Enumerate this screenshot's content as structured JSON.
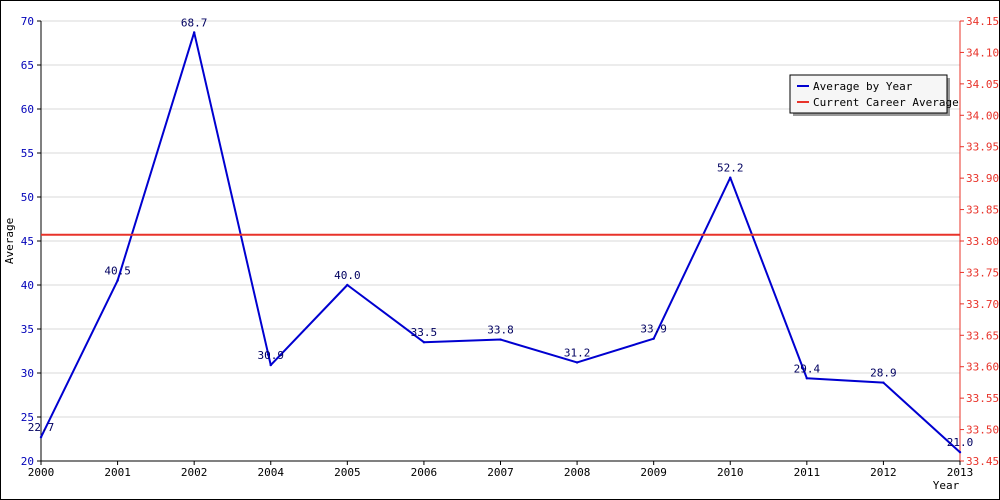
{
  "chart_data": {
    "type": "line",
    "title": "",
    "xlabel": "Year",
    "ylabel": "Average",
    "categories": [
      "2000",
      "2001",
      "2002",
      "2004",
      "2005",
      "2006",
      "2007",
      "2008",
      "2009",
      "2010",
      "2011",
      "2012",
      "2013"
    ],
    "series": [
      {
        "name": "Average by Year",
        "color": "#0000d0",
        "axis": "left",
        "values": [
          22.7,
          40.5,
          68.7,
          30.9,
          40.0,
          33.5,
          33.8,
          31.2,
          33.9,
          52.2,
          29.4,
          28.9,
          21.0
        ],
        "labels": [
          "22.7",
          "40.5",
          "68.7",
          "30.9",
          "40.0",
          "33.5",
          "33.8",
          "31.2",
          "33.9",
          "52.2",
          "29.4",
          "28.9",
          "21.0"
        ]
      },
      {
        "name": "Current Career Average",
        "color": "#e8332a",
        "axis": "right",
        "value": 33.81
      }
    ],
    "y_left": {
      "min": 20,
      "max": 70,
      "ticks": [
        "20",
        "25",
        "30",
        "35",
        "40",
        "45",
        "50",
        "55",
        "60",
        "65",
        "70"
      ],
      "color": "#0000b8"
    },
    "y_right": {
      "min": 33.45,
      "max": 34.15,
      "ticks": [
        "33.45",
        "33.50",
        "33.55",
        "33.60",
        "33.65",
        "33.70",
        "33.75",
        "33.80",
        "33.85",
        "33.90",
        "33.95",
        "34.00",
        "34.05",
        "34.10",
        "34.15"
      ],
      "color": "#e8332a"
    },
    "grid": true,
    "legend": "top-right"
  }
}
